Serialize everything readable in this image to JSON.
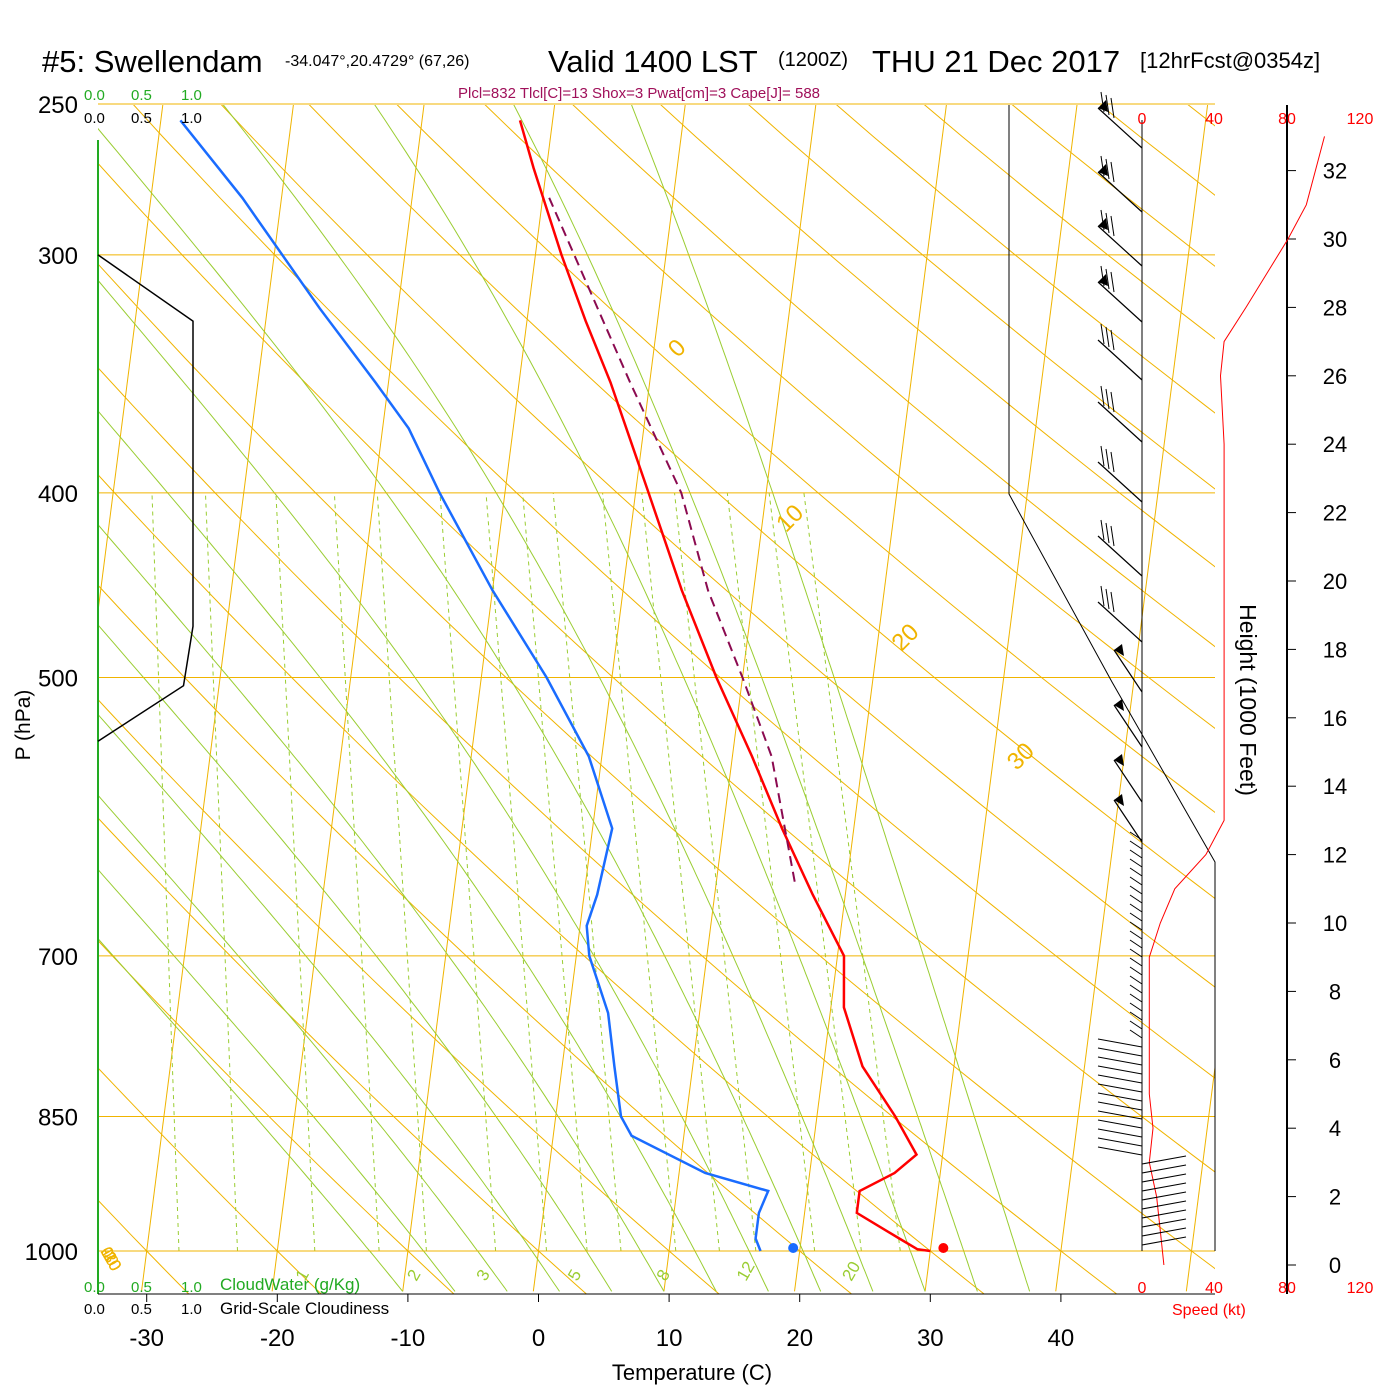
{
  "header": {
    "station": "#5: Swellendam",
    "coords": "-34.047°,20.4729° (67,26)",
    "valid": "Valid 1400 LST",
    "zulu": "(1200Z)",
    "date": "THU 21 Dec 2017",
    "forecast": "[12hrFcst@0354z]",
    "params": "Plcl=832 Tlcl[C]=13 Shox=3 Pwat[cm]=3 Cape[J]= 588"
  },
  "cloud_scale": {
    "green_ticks": [
      "0.0",
      "0.5",
      "1.0"
    ],
    "black_ticks": [
      "0.0",
      "0.5",
      "1.0"
    ],
    "cloudwater_label": "CloudWater (g/Kg)",
    "cloudiness_label": "Grid-Scale Cloudiness"
  },
  "wind_scale": {
    "ticks": [
      "0",
      "40",
      "80",
      "120"
    ],
    "speed_label": "Speed (kt)"
  },
  "colors": {
    "isotherm": "#f0b400",
    "mixing": "#9acd32",
    "temperature": "#ff0000",
    "dewpoint": "#1a6cff",
    "parcel": "#8b0a50",
    "params": "#a0105a",
    "green_label": "#22aa22",
    "speed": "#ff0000"
  },
  "chart_data": {
    "type": "line",
    "title": "Skew-T log-P sounding",
    "xlabel": "Temperature (C)",
    "ylabel": "P (hPa)",
    "y2label": "Height (1000 Feet)",
    "x_ticks": [
      "-30",
      "-20",
      "-10",
      "0",
      "10",
      "20",
      "30",
      "40"
    ],
    "x_tick_values": [
      -30,
      -20,
      -10,
      0,
      10,
      20,
      30,
      40
    ],
    "pressure_ticks": [
      {
        "value": 250,
        "label": "250"
      },
      {
        "value": 300,
        "label": "300"
      },
      {
        "value": 400,
        "label": "400"
      },
      {
        "value": 500,
        "label": "500"
      },
      {
        "value": 700,
        "label": "700"
      },
      {
        "value": 850,
        "label": "850"
      },
      {
        "value": 1000,
        "label": "1000"
      }
    ],
    "height_ticks": [
      {
        "value": 0,
        "label": "0"
      },
      {
        "value": 2,
        "label": "2"
      },
      {
        "value": 4,
        "label": "4"
      },
      {
        "value": 6,
        "label": "6"
      },
      {
        "value": 8,
        "label": "8"
      },
      {
        "value": 10,
        "label": "10"
      },
      {
        "value": 12,
        "label": "12"
      },
      {
        "value": 14,
        "label": "14"
      },
      {
        "value": 16,
        "label": "16"
      },
      {
        "value": 18,
        "label": "18"
      },
      {
        "value": 20,
        "label": "20"
      },
      {
        "value": 22,
        "label": "22"
      },
      {
        "value": 24,
        "label": "24"
      },
      {
        "value": 26,
        "label": "26"
      },
      {
        "value": 28,
        "label": "28"
      },
      {
        "value": 30,
        "label": "30"
      },
      {
        "value": 32,
        "label": "32"
      }
    ],
    "isotherm_labels": [
      {
        "t": 10,
        "label": "10"
      },
      {
        "t": 0,
        "label": "0"
      },
      {
        "t": -10,
        "label": "-10"
      },
      {
        "t": -20,
        "label": "-20"
      },
      {
        "t": -30,
        "label": "-30"
      }
    ],
    "isotherm_labels_right": [
      {
        "t": 0,
        "label": "0"
      },
      {
        "t": 10,
        "label": "10"
      },
      {
        "t": 20,
        "label": "20"
      },
      {
        "t": 30,
        "label": "30"
      }
    ],
    "mixing_ratios": [
      {
        "w": 1,
        "label": "1"
      },
      {
        "w": 2,
        "label": "2"
      },
      {
        "w": 3,
        "label": "3"
      },
      {
        "w": 5,
        "label": "5"
      },
      {
        "w": 8,
        "label": "8"
      },
      {
        "w": 12,
        "label": "12"
      },
      {
        "w": 20,
        "label": "20"
      }
    ],
    "series": [
      {
        "name": "Temperature",
        "points": [
          [
            1000,
            30.0
          ],
          [
            998,
            29.0
          ],
          [
            985,
            27.5
          ],
          [
            955,
            24.0
          ],
          [
            930,
            24.0
          ],
          [
            910,
            26.5
          ],
          [
            890,
            28.0
          ],
          [
            850,
            26.0
          ],
          [
            800,
            23.0
          ],
          [
            745,
            21.0
          ],
          [
            700,
            20.5
          ],
          [
            650,
            17.5
          ],
          [
            600,
            14.5
          ],
          [
            550,
            11.5
          ],
          [
            500,
            8.0
          ],
          [
            450,
            4.5
          ],
          [
            400,
            1.0
          ],
          [
            350,
            -3.0
          ],
          [
            325,
            -5.5
          ],
          [
            300,
            -8.0
          ],
          [
            270,
            -11.0
          ],
          [
            255,
            -12.5
          ]
        ]
      },
      {
        "name": "Dewpoint",
        "points": [
          [
            1000,
            17.0
          ],
          [
            985,
            16.5
          ],
          [
            955,
            16.5
          ],
          [
            930,
            17.0
          ],
          [
            910,
            12.0
          ],
          [
            870,
            6.0
          ],
          [
            850,
            5.0
          ],
          [
            800,
            4.0
          ],
          [
            750,
            3.0
          ],
          [
            700,
            1.0
          ],
          [
            675,
            0.5
          ],
          [
            650,
            1.0
          ],
          [
            600,
            1.5
          ],
          [
            550,
            -1.0
          ],
          [
            500,
            -5.0
          ],
          [
            450,
            -10.0
          ],
          [
            400,
            -15.0
          ],
          [
            370,
            -18.0
          ],
          [
            350,
            -21.0
          ],
          [
            320,
            -26.0
          ],
          [
            280,
            -33.0
          ],
          [
            255,
            -38.5
          ]
        ]
      },
      {
        "name": "Parcel",
        "points": [
          [
            640,
            16.0
          ],
          [
            550,
            13.0
          ],
          [
            500,
            10.0
          ],
          [
            450,
            6.5
          ],
          [
            400,
            3.5
          ],
          [
            350,
            -1.5
          ],
          [
            280,
            -9.5
          ]
        ]
      },
      {
        "name": "Cloudiness",
        "points": [
          [
            300,
            0.0
          ],
          [
            325,
            0.5
          ],
          [
            470,
            0.5
          ],
          [
            505,
            0.45
          ],
          [
            540,
            0.0
          ]
        ]
      }
    ],
    "surface_temperature": 31.0,
    "surface_dewpoint": 19.5,
    "wind_speed_profile": [
      [
        0,
        12
      ],
      [
        1,
        10
      ],
      [
        2,
        8
      ],
      [
        3,
        4
      ],
      [
        4,
        6
      ],
      [
        5,
        4
      ],
      [
        6,
        4
      ],
      [
        8,
        4
      ],
      [
        9,
        4
      ],
      [
        10,
        10
      ],
      [
        11,
        18
      ],
      [
        12,
        35
      ],
      [
        13,
        45
      ],
      [
        14,
        45
      ],
      [
        16,
        45
      ],
      [
        18,
        45
      ],
      [
        20,
        45
      ],
      [
        22,
        45
      ],
      [
        24,
        45
      ],
      [
        26,
        43
      ],
      [
        27,
        45
      ],
      [
        28,
        57
      ],
      [
        30,
        80
      ],
      [
        31,
        90
      ],
      [
        32,
        95
      ],
      [
        33,
        100
      ]
    ]
  }
}
